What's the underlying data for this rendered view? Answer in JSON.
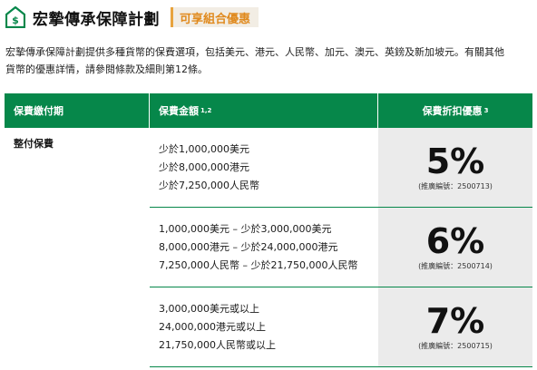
{
  "header": {
    "title": "宏摯傳承保障計劃",
    "badge": "可享組合優惠",
    "accent_color": "#06874a",
    "badge_color": "#e08a1e"
  },
  "intro": {
    "line1": "宏摯傳承保障計劃提供多種貨幣的保費選項，包括美元、港元、人民幣、加元、澳元、英鎊及新加坡元。有關其他",
    "line2": "貨幣的優惠詳情，請參閱條款及細則第12條。"
  },
  "table": {
    "headers": {
      "period": "保費繳付期",
      "amount": "保費金額",
      "amount_sup": "1,2",
      "discount": "保費折扣優惠",
      "discount_sup": "3"
    },
    "payment_type": "整付保費",
    "rows": [
      {
        "amounts": [
          "少於1,000,000美元",
          "少於8,000,000港元",
          "少於7,250,000人民幣"
        ],
        "discount": "5%",
        "code": "(推廣編號：2500713)"
      },
      {
        "amounts": [
          "1,000,000美元 – 少於3,000,000美元",
          "8,000,000港元 – 少於24,000,000港元",
          "7,250,000人民幣 – 少於21,750,000人民幣"
        ],
        "discount": "6%",
        "code": "(推廣編號：2500714)"
      },
      {
        "amounts": [
          "3,000,000美元或以上",
          "24,000,000港元或以上",
          "21,750,000人民幣或以上"
        ],
        "discount": "7%",
        "code": "(推廣編號：2500715)"
      }
    ]
  }
}
